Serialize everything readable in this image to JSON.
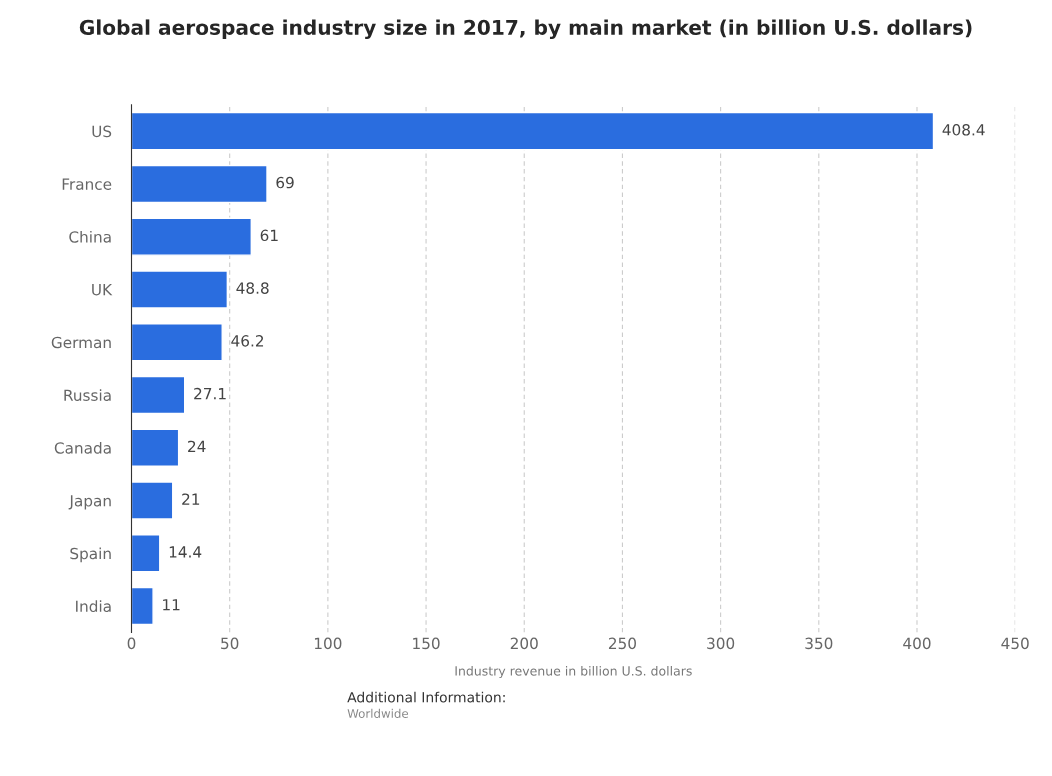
{
  "chart_data": {
    "type": "bar",
    "orientation": "horizontal",
    "title": "Global aerospace industry size in 2017, by main market (in billion U.S. dollars)",
    "xlabel": "Industry revenue in billion U.S. dollars",
    "categories": [
      "US",
      "France",
      "China",
      "UK",
      "German",
      "Russia",
      "Canada",
      "Japan",
      "Spain",
      "India"
    ],
    "values": [
      408.4,
      69,
      61,
      48.8,
      46.2,
      27.1,
      24,
      21,
      14.4,
      11
    ],
    "color": "#2a6ddf",
    "xlim": [
      0,
      450
    ],
    "xticks": [
      0,
      50,
      100,
      150,
      200,
      250,
      300,
      350,
      400,
      450
    ],
    "grid": "x",
    "data_labels": true,
    "annotations": [
      "Additional Information:",
      "Worldwide"
    ]
  }
}
